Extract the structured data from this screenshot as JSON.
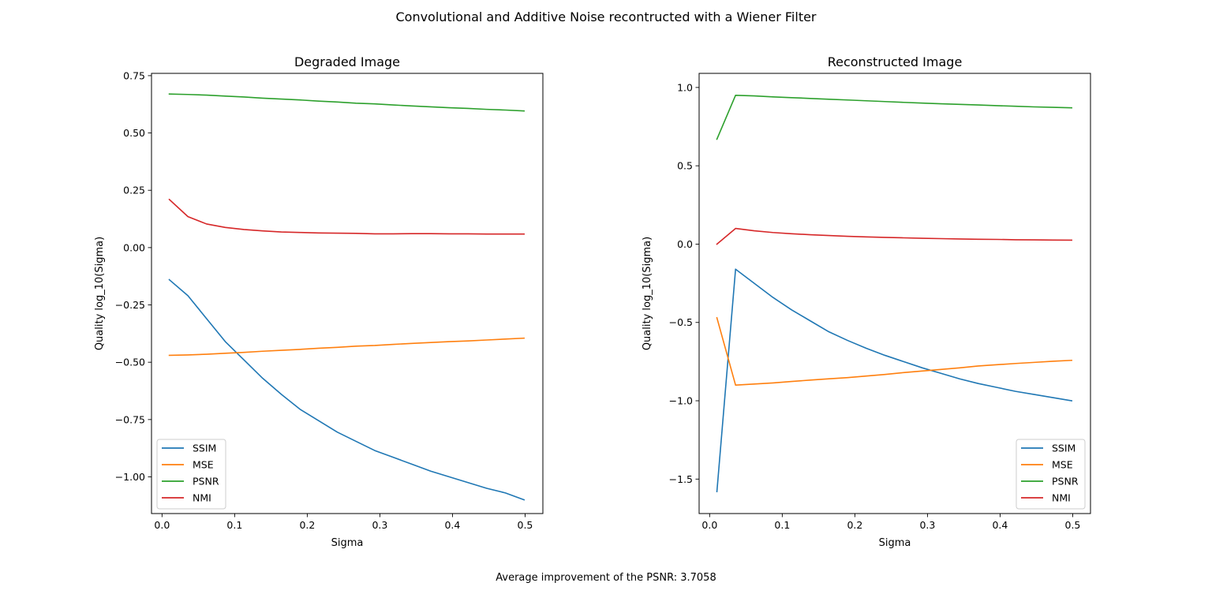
{
  "figure": {
    "title": "Convolutional and Additive Noise recontructed with a Wiener Filter",
    "footnote": "Average improvement of the PSNR: 3.7058"
  },
  "colors": {
    "SSIM": "#1f77b4",
    "MSE": "#ff7f0e",
    "PSNR": "#2ca02c",
    "NMI": "#d62728"
  },
  "chart_data": [
    {
      "type": "line",
      "title": "Degraded Image",
      "xlabel": "Sigma",
      "ylabel": "Quality log_10(Sigma)",
      "xlim": [
        -0.0145,
        0.5245
      ],
      "ylim": [
        -1.16,
        0.76
      ],
      "xticks": [
        0.0,
        0.1,
        0.2,
        0.3,
        0.4,
        0.5
      ],
      "xtick_labels": [
        "0.0",
        "0.1",
        "0.2",
        "0.3",
        "0.4",
        "0.5"
      ],
      "yticks": [
        -1.0,
        -0.75,
        -0.5,
        -0.25,
        0.0,
        0.25,
        0.5,
        0.75
      ],
      "ytick_labels": [
        "−1.00",
        "−0.75",
        "−0.50",
        "−0.25",
        "0.00",
        "0.25",
        "0.50",
        "0.75"
      ],
      "legend_position": "lower-left",
      "x": [
        0.01,
        0.0357,
        0.0614,
        0.0871,
        0.1129,
        0.1386,
        0.1643,
        0.19,
        0.2157,
        0.2414,
        0.2671,
        0.2929,
        0.3186,
        0.3443,
        0.37,
        0.3957,
        0.4214,
        0.4471,
        0.4729,
        0.4986
      ],
      "series": [
        {
          "name": "SSIM",
          "values": [
            -0.14,
            -0.21,
            -0.31,
            -0.41,
            -0.49,
            -0.57,
            -0.64,
            -0.705,
            -0.755,
            -0.805,
            -0.845,
            -0.885,
            -0.915,
            -0.945,
            -0.975,
            -1.0,
            -1.025,
            -1.05,
            -1.07,
            -1.1
          ]
        },
        {
          "name": "MSE",
          "values": [
            -0.47,
            -0.468,
            -0.465,
            -0.461,
            -0.457,
            -0.452,
            -0.448,
            -0.444,
            -0.439,
            -0.435,
            -0.43,
            -0.427,
            -0.422,
            -0.418,
            -0.414,
            -0.41,
            -0.407,
            -0.403,
            -0.399,
            -0.395
          ]
        },
        {
          "name": "PSNR",
          "values": [
            0.67,
            0.668,
            0.665,
            0.661,
            0.657,
            0.652,
            0.648,
            0.644,
            0.639,
            0.635,
            0.63,
            0.627,
            0.622,
            0.618,
            0.614,
            0.61,
            0.607,
            0.603,
            0.6,
            0.596
          ]
        },
        {
          "name": "NMI",
          "values": [
            0.21,
            0.135,
            0.103,
            0.088,
            0.079,
            0.073,
            0.068,
            0.066,
            0.064,
            0.063,
            0.062,
            0.06,
            0.06,
            0.061,
            0.061,
            0.06,
            0.06,
            0.059,
            0.059,
            0.059
          ]
        }
      ]
    },
    {
      "type": "line",
      "title": "Reconstructed Image",
      "xlabel": "Sigma",
      "ylabel": "Quality log_10(Sigma)",
      "xlim": [
        -0.0145,
        0.5245
      ],
      "ylim": [
        -1.72,
        1.09
      ],
      "xticks": [
        0.0,
        0.1,
        0.2,
        0.3,
        0.4,
        0.5
      ],
      "xtick_labels": [
        "0.0",
        "0.1",
        "0.2",
        "0.3",
        "0.4",
        "0.5"
      ],
      "yticks": [
        -1.5,
        -1.0,
        -0.5,
        0.0,
        0.5,
        1.0
      ],
      "ytick_labels": [
        "−1.5",
        "−1.0",
        "−0.5",
        "0.0",
        "0.5",
        "1.0"
      ],
      "legend_position": "lower-right",
      "x": [
        0.01,
        0.0357,
        0.0614,
        0.0871,
        0.1129,
        0.1386,
        0.1643,
        0.19,
        0.2157,
        0.2414,
        0.2671,
        0.2929,
        0.3186,
        0.3443,
        0.37,
        0.3957,
        0.4214,
        0.4471,
        0.4729,
        0.4986
      ],
      "series": [
        {
          "name": "SSIM",
          "values": [
            -1.58,
            -0.16,
            -0.25,
            -0.34,
            -0.42,
            -0.49,
            -0.56,
            -0.615,
            -0.665,
            -0.71,
            -0.75,
            -0.79,
            -0.825,
            -0.86,
            -0.89,
            -0.915,
            -0.94,
            -0.96,
            -0.98,
            -1.0
          ]
        },
        {
          "name": "MSE",
          "values": [
            -0.47,
            -0.9,
            -0.893,
            -0.886,
            -0.877,
            -0.868,
            -0.86,
            -0.852,
            -0.842,
            -0.832,
            -0.82,
            -0.81,
            -0.8,
            -0.79,
            -0.778,
            -0.77,
            -0.762,
            -0.755,
            -0.748,
            -0.742
          ]
        },
        {
          "name": "PSNR",
          "values": [
            0.67,
            0.95,
            0.946,
            0.94,
            0.935,
            0.93,
            0.925,
            0.92,
            0.915,
            0.91,
            0.905,
            0.9,
            0.896,
            0.892,
            0.888,
            0.884,
            0.88,
            0.876,
            0.873,
            0.87
          ]
        },
        {
          "name": "NMI",
          "values": [
            0.0,
            0.1,
            0.085,
            0.074,
            0.066,
            0.06,
            0.055,
            0.05,
            0.046,
            0.043,
            0.04,
            0.037,
            0.035,
            0.033,
            0.031,
            0.03,
            0.028,
            0.027,
            0.026,
            0.025
          ]
        }
      ]
    }
  ]
}
